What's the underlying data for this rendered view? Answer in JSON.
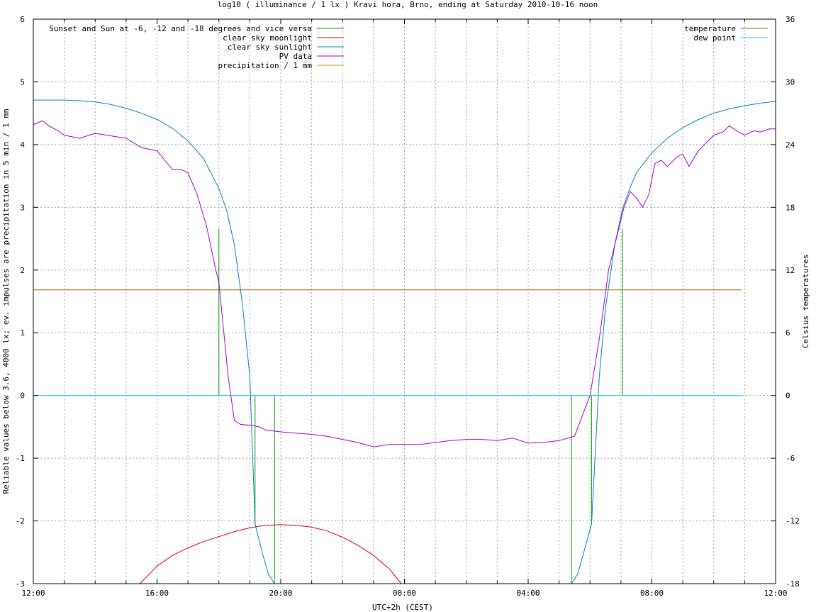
{
  "chart_data": {
    "type": "line",
    "title": "log10 ( illuminance / 1 lx ) Kravi hora, Brno, ending at Saturday 2010-10-16 noon",
    "xlabel": "UTC+2h (CEST)",
    "ylabel": "Reliable values below 3.6, 4000 lx; ev. impulses are precipitation in 5 min / 1 mm",
    "y2label": "Celsius temperatures",
    "x_unit": "hours since 12:00",
    "xlim": [
      0,
      24
    ],
    "ylim": [
      -3,
      6
    ],
    "y2lim": [
      -18,
      36
    ],
    "x_tick_labels": [
      "12:00",
      "16:00",
      "20:00",
      "00:00",
      "04:00",
      "08:00",
      "12:00"
    ],
    "x_tick_positions": [
      0,
      4,
      8,
      12,
      16,
      20,
      24
    ],
    "x_grid_step": 1,
    "y_ticks": [
      -3,
      -2,
      -1,
      0,
      1,
      2,
      3,
      4,
      5,
      6
    ],
    "y_tick_labels": [
      "-3",
      "-2",
      "-1",
      "0",
      "1",
      "2",
      "3",
      "4",
      "5",
      "6"
    ],
    "y2_ticks": [
      -18,
      -12,
      -6,
      0,
      6,
      12,
      18,
      24,
      30,
      36
    ],
    "y2_tick_labels": [
      "-18",
      "-12",
      "-6",
      "0",
      "6",
      "12",
      "18",
      "24",
      "30",
      "36"
    ],
    "grid": true,
    "legend_left": [
      {
        "label": "Sunset and Sun at -6, -12 and -18 degrees and vice versa",
        "color": "#00a000"
      },
      {
        "label": "clear sky moonlight",
        "color": "#cc0000"
      },
      {
        "label": "clear sky sunlight",
        "color": "#0080c0"
      },
      {
        "label": "PV data",
        "color": "#a000d0"
      },
      {
        "label": "precipitation / 1 mm",
        "color": "#d0a000"
      }
    ],
    "legend_right": [
      {
        "label": "temperature",
        "color": "#a06000"
      },
      {
        "label": "dew point",
        "color": "#00d0d0"
      }
    ],
    "series": [
      {
        "name": "Sunset and Sun at -6, -12 and -18 degrees and vice versa",
        "kind": "impulses",
        "color": "#00a000",
        "x": [
          6.0,
          7.17,
          7.8,
          17.4,
          18.05,
          19.05
        ],
        "y": [
          2.65,
          -2.05,
          -3.0,
          -3.0,
          -2.05,
          2.65
        ]
      },
      {
        "name": "clear sky moonlight",
        "color": "#cc0000",
        "x": [
          3.45,
          4.0,
          4.5,
          5.0,
          5.5,
          6.0,
          6.5,
          7.0,
          7.5,
          8.0,
          8.5,
          9.0,
          9.5,
          10.0,
          10.5,
          11.0,
          11.5,
          11.9
        ],
        "y": [
          -3.0,
          -2.72,
          -2.55,
          -2.43,
          -2.33,
          -2.25,
          -2.17,
          -2.11,
          -2.07,
          -2.06,
          -2.07,
          -2.1,
          -2.16,
          -2.26,
          -2.39,
          -2.55,
          -2.76,
          -3.0
        ]
      },
      {
        "name": "clear sky sunlight",
        "color": "#0080c0",
        "x": [
          0,
          1,
          1.5,
          2,
          2.5,
          3,
          3.5,
          4,
          4.5,
          5,
          5.5,
          6,
          6.25,
          6.5,
          6.75,
          7.0,
          7.17,
          7.4,
          7.6,
          7.8,
          17.4,
          17.6,
          17.8,
          18.05,
          18.3,
          18.5,
          18.8,
          19.05,
          19.3,
          19.5,
          20.0,
          20.5,
          21,
          21.5,
          22,
          22.5,
          23,
          23.5,
          24
        ],
        "y": [
          4.71,
          4.71,
          4.7,
          4.68,
          4.64,
          4.58,
          4.5,
          4.4,
          4.26,
          4.06,
          3.78,
          3.3,
          2.95,
          2.4,
          1.5,
          0.3,
          -2.05,
          -2.5,
          -2.85,
          -3.0,
          -3.0,
          -2.85,
          -2.5,
          -2.05,
          0.3,
          1.4,
          2.4,
          2.98,
          3.32,
          3.55,
          3.87,
          4.1,
          4.27,
          4.4,
          4.5,
          4.57,
          4.62,
          4.66,
          4.69
        ]
      },
      {
        "name": "PV data",
        "color": "#a000d0",
        "x": [
          0,
          0.3,
          0.5,
          0.8,
          1.0,
          1.5,
          2.0,
          2.5,
          3.0,
          3.5,
          4.0,
          4.5,
          4.8,
          5.0,
          5.3,
          5.6,
          5.9,
          6.0,
          6.2,
          6.3,
          6.5,
          6.7,
          6.9,
          7.1,
          7.3,
          7.5,
          8.0,
          8.5,
          9.0,
          9.5,
          10.0,
          10.5,
          11.0,
          11.5,
          12.0,
          12.5,
          13.0,
          13.5,
          14.0,
          14.5,
          15.0,
          15.5,
          16.0,
          16.5,
          17.0,
          17.5,
          18.0,
          18.3,
          18.6,
          18.9,
          19.1,
          19.3,
          19.5,
          19.7,
          19.9,
          20.1,
          20.3,
          20.5,
          20.8,
          21.0,
          21.2,
          21.5,
          21.8,
          22.0,
          22.3,
          22.5,
          22.8,
          23.0,
          23.3,
          23.5,
          23.8,
          24.0
        ],
        "y": [
          4.32,
          4.38,
          4.3,
          4.22,
          4.15,
          4.1,
          4.18,
          4.14,
          4.1,
          3.95,
          3.9,
          3.6,
          3.6,
          3.55,
          3.2,
          2.7,
          2.0,
          1.8,
          0.8,
          0.3,
          -0.4,
          -0.46,
          -0.47,
          -0.48,
          -0.5,
          -0.55,
          -0.58,
          -0.6,
          -0.62,
          -0.65,
          -0.7,
          -0.75,
          -0.82,
          -0.78,
          -0.78,
          -0.78,
          -0.75,
          -0.72,
          -0.7,
          -0.7,
          -0.72,
          -0.68,
          -0.76,
          -0.75,
          -0.72,
          -0.65,
          0.0,
          0.9,
          2.0,
          2.6,
          3.0,
          3.25,
          3.15,
          3.0,
          3.2,
          3.7,
          3.75,
          3.65,
          3.8,
          3.85,
          3.65,
          3.9,
          4.05,
          4.15,
          4.2,
          4.3,
          4.2,
          4.15,
          4.22,
          4.2,
          4.25,
          4.25
        ]
      },
      {
        "name": "temperature",
        "axis": "y2",
        "color": "#a06000",
        "x": [
          0,
          22.9
        ],
        "y": [
          10.1,
          10.1
        ]
      },
      {
        "name": "dew point",
        "axis": "y2",
        "color": "#00d0d0",
        "x": [
          0,
          22.9
        ],
        "y": [
          0,
          0
        ]
      }
    ]
  }
}
